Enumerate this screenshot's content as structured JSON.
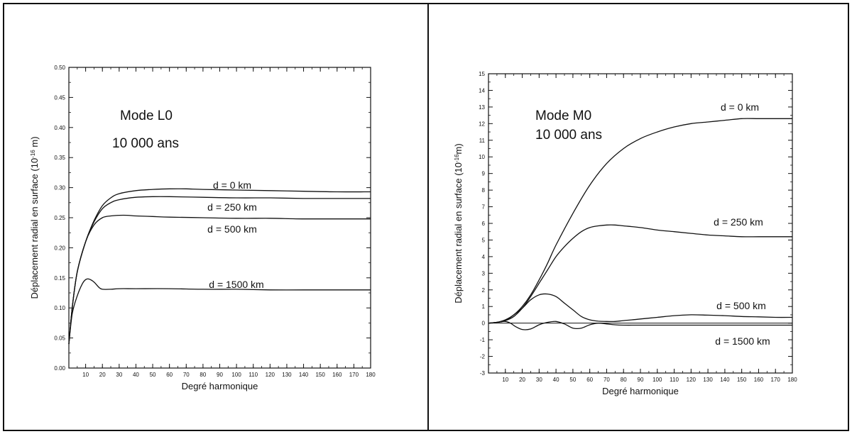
{
  "chart_data": [
    {
      "type": "line",
      "title": "",
      "xlabel": "Degré harmonique",
      "ylabel_main": "Déplacement radial en surface (10",
      "ylabel_exp": "-16",
      "ylabel_unit": " m)",
      "xlim": [
        0,
        180
      ],
      "ylim": [
        0,
        0.5
      ],
      "x_ticks": [
        10,
        20,
        30,
        40,
        50,
        60,
        70,
        80,
        90,
        100,
        110,
        120,
        130,
        140,
        150,
        160,
        170,
        180
      ],
      "y_ticks": [
        "0.00",
        "0.05",
        "0.10",
        "0.15",
        "0.20",
        "0.25",
        "0.30",
        "0.35",
        "0.40",
        "0.45",
        "0.50"
      ],
      "annotations": [
        "Mode L0",
        "10 000 ans"
      ],
      "series": [
        {
          "name": "d = 0 km",
          "x": [
            0,
            2,
            5,
            10,
            15,
            20,
            25,
            30,
            40,
            50,
            60,
            70,
            80,
            100,
            120,
            140,
            160,
            180
          ],
          "y": [
            0.04,
            0.1,
            0.16,
            0.21,
            0.245,
            0.27,
            0.283,
            0.29,
            0.295,
            0.297,
            0.298,
            0.298,
            0.297,
            0.296,
            0.295,
            0.294,
            0.293,
            0.293
          ]
        },
        {
          "name": "d = 250 km",
          "x": [
            0,
            2,
            5,
            10,
            15,
            20,
            25,
            30,
            40,
            50,
            60,
            80,
            100,
            120,
            140,
            160,
            180
          ],
          "y": [
            0.04,
            0.1,
            0.16,
            0.21,
            0.243,
            0.265,
            0.275,
            0.28,
            0.284,
            0.285,
            0.285,
            0.284,
            0.283,
            0.283,
            0.282,
            0.282,
            0.282
          ]
        },
        {
          "name": "d = 500 km",
          "x": [
            0,
            2,
            5,
            10,
            15,
            20,
            25,
            30,
            35,
            40,
            50,
            60,
            80,
            100,
            120,
            140,
            160,
            180
          ],
          "y": [
            0.04,
            0.1,
            0.16,
            0.21,
            0.238,
            0.25,
            0.253,
            0.254,
            0.254,
            0.253,
            0.252,
            0.251,
            0.25,
            0.249,
            0.249,
            0.248,
            0.248,
            0.248
          ]
        },
        {
          "name": "d = 1500 km",
          "x": [
            0,
            2,
            5,
            8,
            10,
            12,
            15,
            18,
            20,
            25,
            30,
            40,
            60,
            80,
            100,
            120,
            140,
            160,
            180
          ],
          "y": [
            0.04,
            0.09,
            0.12,
            0.14,
            0.147,
            0.148,
            0.143,
            0.134,
            0.131,
            0.131,
            0.132,
            0.132,
            0.132,
            0.131,
            0.131,
            0.13,
            0.13,
            0.13,
            0.13
          ]
        }
      ]
    },
    {
      "type": "line",
      "title": "",
      "xlabel": "Degré harmonique",
      "ylabel_main": "Déplacement radial en surface (10",
      "ylabel_exp": "-16",
      "ylabel_unit": "m)",
      "xlim": [
        0,
        180
      ],
      "ylim": [
        -3,
        15
      ],
      "x_ticks": [
        10,
        20,
        30,
        40,
        50,
        60,
        70,
        80,
        90,
        100,
        110,
        120,
        130,
        140,
        150,
        160,
        170,
        180
      ],
      "y_ticks": [
        -3,
        -2,
        -1,
        0,
        1,
        2,
        3,
        4,
        5,
        6,
        7,
        8,
        9,
        10,
        11,
        12,
        13,
        14,
        15
      ],
      "annotations": [
        "Mode M0",
        "10 000 ans"
      ],
      "series": [
        {
          "name": "d = 0 km",
          "x": [
            0,
            5,
            10,
            15,
            20,
            25,
            30,
            35,
            40,
            50,
            60,
            70,
            80,
            90,
            100,
            110,
            120,
            130,
            140,
            150,
            160,
            170,
            180
          ],
          "y": [
            0,
            0.05,
            0.2,
            0.5,
            1.0,
            1.7,
            2.6,
            3.6,
            4.7,
            6.6,
            8.3,
            9.6,
            10.5,
            11.1,
            11.5,
            11.8,
            12.0,
            12.1,
            12.2,
            12.3,
            12.3,
            12.3,
            12.3
          ]
        },
        {
          "name": "d = 250 km",
          "x": [
            0,
            5,
            10,
            15,
            20,
            25,
            30,
            35,
            40,
            45,
            50,
            55,
            60,
            65,
            70,
            75,
            80,
            90,
            100,
            110,
            120,
            130,
            140,
            150,
            160,
            170,
            180
          ],
          "y": [
            0,
            0.05,
            0.15,
            0.4,
            0.9,
            1.6,
            2.4,
            3.2,
            4.0,
            4.6,
            5.1,
            5.5,
            5.75,
            5.85,
            5.9,
            5.9,
            5.85,
            5.75,
            5.6,
            5.5,
            5.4,
            5.3,
            5.25,
            5.2,
            5.2,
            5.2,
            5.2
          ]
        },
        {
          "name": "d = 500 km",
          "x": [
            0,
            5,
            10,
            15,
            20,
            25,
            30,
            35,
            40,
            45,
            50,
            55,
            60,
            65,
            70,
            75,
            80,
            90,
            100,
            110,
            120,
            130,
            140,
            150,
            160,
            170,
            180
          ],
          "y": [
            0,
            0.05,
            0.15,
            0.5,
            0.9,
            1.4,
            1.7,
            1.75,
            1.6,
            1.2,
            0.8,
            0.4,
            0.2,
            0.12,
            0.1,
            0.1,
            0.15,
            0.25,
            0.35,
            0.45,
            0.5,
            0.48,
            0.45,
            0.4,
            0.38,
            0.35,
            0.35
          ]
        },
        {
          "name": "d = 1500 km",
          "x": [
            0,
            5,
            10,
            13,
            16,
            20,
            25,
            30,
            35,
            40,
            45,
            50,
            55,
            60,
            65,
            70,
            75,
            80,
            90,
            100,
            120,
            140,
            160,
            180
          ],
          "y": [
            0,
            0.05,
            0.1,
            0.0,
            -0.2,
            -0.38,
            -0.35,
            -0.1,
            0.05,
            0.1,
            -0.05,
            -0.3,
            -0.3,
            -0.1,
            0.0,
            -0.05,
            -0.1,
            -0.12,
            -0.12,
            -0.12,
            -0.12,
            -0.12,
            -0.12,
            -0.12
          ]
        }
      ]
    }
  ]
}
